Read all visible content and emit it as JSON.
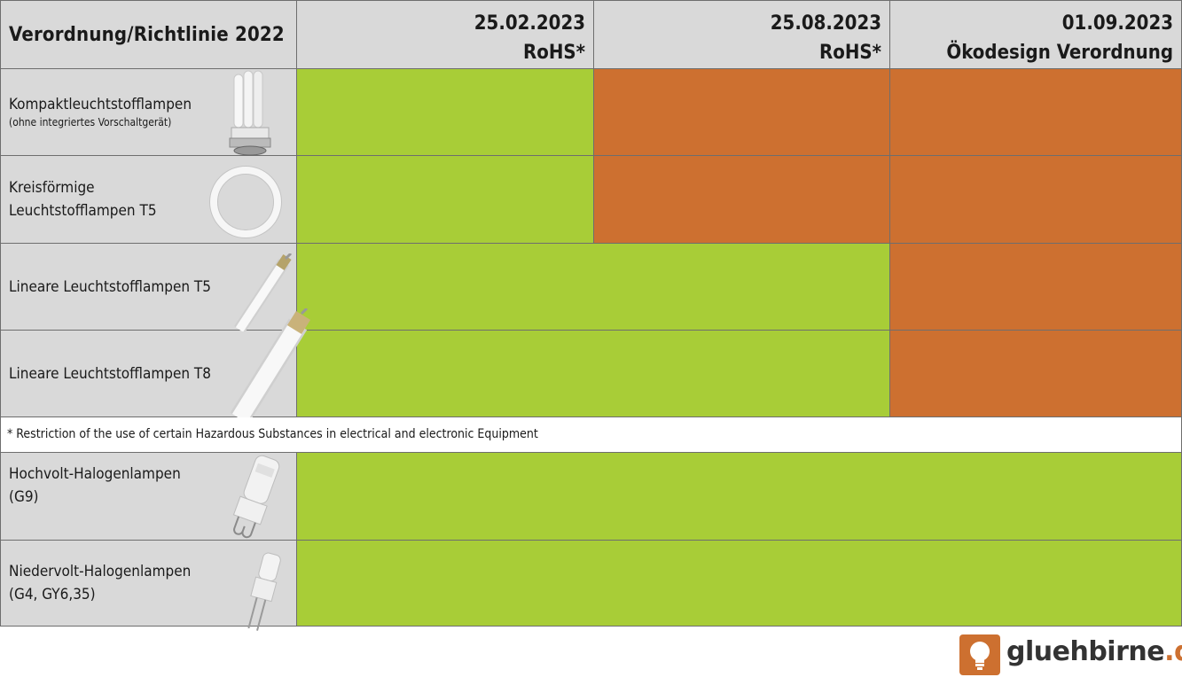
{
  "header": {
    "title": "Verordnung/Richtlinie 2022",
    "columns": [
      {
        "date": "25.02.2023",
        "label": "RoHS*"
      },
      {
        "date": "25.08.2023",
        "label": "RoHS*"
      },
      {
        "date": "01.09.2023",
        "label": "Ökodesign Verordnung"
      }
    ]
  },
  "rows": [
    {
      "name": "Kompaktleuchtstofflampen",
      "sub": "(ohne integriertes Vorschaltgerät)",
      "status": [
        "green",
        "orange",
        "orange"
      ],
      "icon": "compact-fluorescent-lamp-icon"
    },
    {
      "name": "Kreisförmige",
      "name2": "Leuchtstofflampen T5",
      "status": [
        "green",
        "orange",
        "orange"
      ],
      "icon": "circular-fluorescent-lamp-icon"
    },
    {
      "name": "Lineare Leuchtstofflampen T5",
      "status": [
        "green",
        "green",
        "orange"
      ],
      "icon": "linear-t5-tube-icon"
    },
    {
      "name": "Lineare Leuchtstofflampen T8",
      "status": [
        "green",
        "green",
        "orange"
      ],
      "icon": "linear-t8-tube-icon"
    },
    {
      "name": "Hochvolt-Halogenlampen",
      "name2": "(G9)",
      "status": [
        "green",
        "green",
        "green"
      ],
      "icon": "g9-halogen-lamp-icon"
    },
    {
      "name": "Niedervolt-Halogenlampen",
      "name2": "(G4, GY6,35)",
      "status": [
        "green",
        "green",
        "green"
      ],
      "icon": "g4-halogen-lamp-icon"
    }
  ],
  "footnote": "* Restriction of the use of certain Hazardous Substances in electrical and electronic Equipment",
  "logo": {
    "name": "gluehbirne",
    "tld": ".de"
  },
  "colors": {
    "allowed": "#a8cd37",
    "banned": "#cd7030",
    "header": "#d9d9d9"
  }
}
